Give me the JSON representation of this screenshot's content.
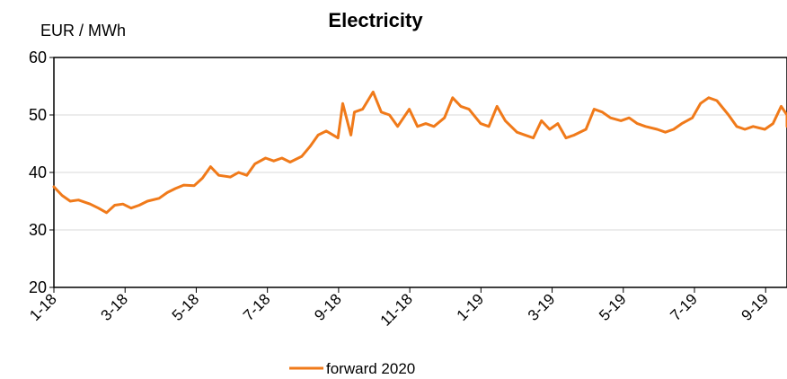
{
  "chart_data": {
    "type": "line",
    "title": "Electricity",
    "ylabel": "EUR / MWh",
    "xlabel": "",
    "ylim": [
      20,
      60
    ],
    "yticks": [
      20,
      30,
      40,
      50,
      60
    ],
    "xticks": [
      "1-18",
      "3-18",
      "5-18",
      "7-18",
      "9-18",
      "11-18",
      "1-19",
      "3-19",
      "5-19",
      "7-19",
      "9-19"
    ],
    "grid": true,
    "legend_position": "bottom",
    "colors": {
      "series": "#F07A1A",
      "grid": "#D9D9D9",
      "axis": "#000000"
    },
    "series": [
      {
        "name": "forward 2020",
        "x": [
          "2018-01-01",
          "2018-01-08",
          "2018-01-15",
          "2018-01-22",
          "2018-02-01",
          "2018-02-08",
          "2018-02-15",
          "2018-02-22",
          "2018-03-01",
          "2018-03-08",
          "2018-03-15",
          "2018-03-22",
          "2018-04-01",
          "2018-04-08",
          "2018-04-15",
          "2018-04-22",
          "2018-05-01",
          "2018-05-08",
          "2018-05-15",
          "2018-05-22",
          "2018-06-01",
          "2018-06-08",
          "2018-06-15",
          "2018-06-22",
          "2018-07-01",
          "2018-07-08",
          "2018-07-15",
          "2018-07-22",
          "2018-08-01",
          "2018-08-08",
          "2018-08-15",
          "2018-08-22",
          "2018-09-01",
          "2018-09-05",
          "2018-09-12",
          "2018-09-15",
          "2018-09-22",
          "2018-10-01",
          "2018-10-08",
          "2018-10-15",
          "2018-10-22",
          "2018-11-01",
          "2018-11-08",
          "2018-11-15",
          "2018-11-22",
          "2018-12-01",
          "2018-12-08",
          "2018-12-15",
          "2018-12-22",
          "2019-01-01",
          "2019-01-08",
          "2019-01-15",
          "2019-01-22",
          "2019-02-01",
          "2019-02-08",
          "2019-02-15",
          "2019-02-22",
          "2019-03-01",
          "2019-03-08",
          "2019-03-15",
          "2019-03-22",
          "2019-04-01",
          "2019-04-08",
          "2019-04-15",
          "2019-04-22",
          "2019-05-01",
          "2019-05-08",
          "2019-05-15",
          "2019-05-22",
          "2019-06-01",
          "2019-06-08",
          "2019-06-15",
          "2019-06-22",
          "2019-07-01",
          "2019-07-08",
          "2019-07-15",
          "2019-07-22",
          "2019-08-01",
          "2019-08-08",
          "2019-08-15",
          "2019-08-22",
          "2019-09-01",
          "2019-09-08",
          "2019-09-15",
          "2019-09-22",
          "2019-10-01"
        ],
        "y": [
          37.5,
          36.0,
          35.0,
          35.2,
          34.5,
          33.8,
          33.0,
          34.3,
          34.5,
          33.8,
          34.3,
          35.0,
          35.5,
          36.5,
          37.2,
          37.8,
          37.7,
          39.0,
          41.0,
          39.5,
          39.2,
          40.0,
          39.5,
          41.5,
          42.5,
          42.0,
          42.5,
          41.8,
          42.8,
          44.5,
          46.5,
          47.2,
          46.0,
          52.0,
          46.5,
          50.5,
          51.0,
          54.0,
          50.5,
          50.0,
          48.0,
          51.0,
          48.0,
          48.5,
          48.0,
          49.5,
          53.0,
          51.5,
          51.0,
          48.5,
          48.0,
          51.5,
          49.0,
          47.0,
          46.5,
          46.0,
          49.0,
          47.5,
          48.5,
          46.0,
          46.5,
          47.5,
          51.0,
          50.5,
          49.5,
          49.0,
          49.5,
          48.5,
          48.0,
          47.5,
          47.0,
          47.5,
          48.5,
          49.5,
          52.0,
          53.0,
          52.5,
          50.0,
          48.0,
          47.5,
          48.0,
          47.5,
          48.5,
          51.5,
          50.0,
          48.0
        ]
      }
    ]
  }
}
